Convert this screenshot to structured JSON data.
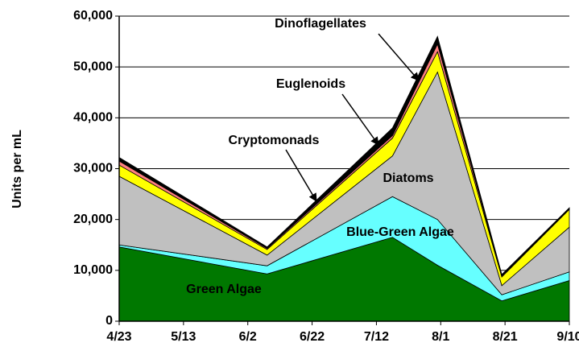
{
  "chart_data": {
    "type": "stacked_area",
    "ylabel": "Units per mL",
    "x": [
      "4/23",
      "6/8",
      "7/17",
      "7/31",
      "8/20",
      "9/10"
    ],
    "xlim": [
      "4/23",
      "9/10"
    ],
    "xticks": [
      "4/23",
      "5/13",
      "6/2",
      "6/22",
      "7/12",
      "8/1",
      "8/21",
      "9/10"
    ],
    "ylim": [
      0,
      60000
    ],
    "yticks": [
      0,
      {
        "value": 10000,
        "label": "10,000"
      },
      {
        "value": 20000,
        "label": "20,000"
      },
      {
        "value": 30000,
        "label": "30,000"
      },
      {
        "value": 40000,
        "label": "40,000"
      },
      {
        "value": 50000,
        "label": "50,000"
      },
      {
        "value": 60000,
        "label": "60,000"
      }
    ],
    "grid": true,
    "series": [
      {
        "name": "Green Algae",
        "color": "#007800",
        "values": [
          14600,
          9300,
          16500,
          11000,
          4000,
          8000
        ]
      },
      {
        "name": "Blue-Green Algae",
        "color": "#66ffff",
        "values": [
          400,
          1600,
          8000,
          9000,
          1200,
          1700
        ]
      },
      {
        "name": "Diatoms",
        "color": "#c0c0c0",
        "values": [
          13500,
          2100,
          8000,
          29000,
          1800,
          8800
        ]
      },
      {
        "name": "Cryptomonads",
        "color": "#ffff00",
        "values": [
          2200,
          1100,
          3500,
          4000,
          1700,
          3500
        ]
      },
      {
        "name": "Euglenoids",
        "color": "#ff8080",
        "values": [
          800,
          200,
          500,
          1500,
          200,
          100
        ]
      },
      {
        "name": "Dinoflagellates",
        "color": "#000000",
        "values": [
          700,
          300,
          1500,
          1500,
          300,
          200
        ]
      }
    ]
  }
}
